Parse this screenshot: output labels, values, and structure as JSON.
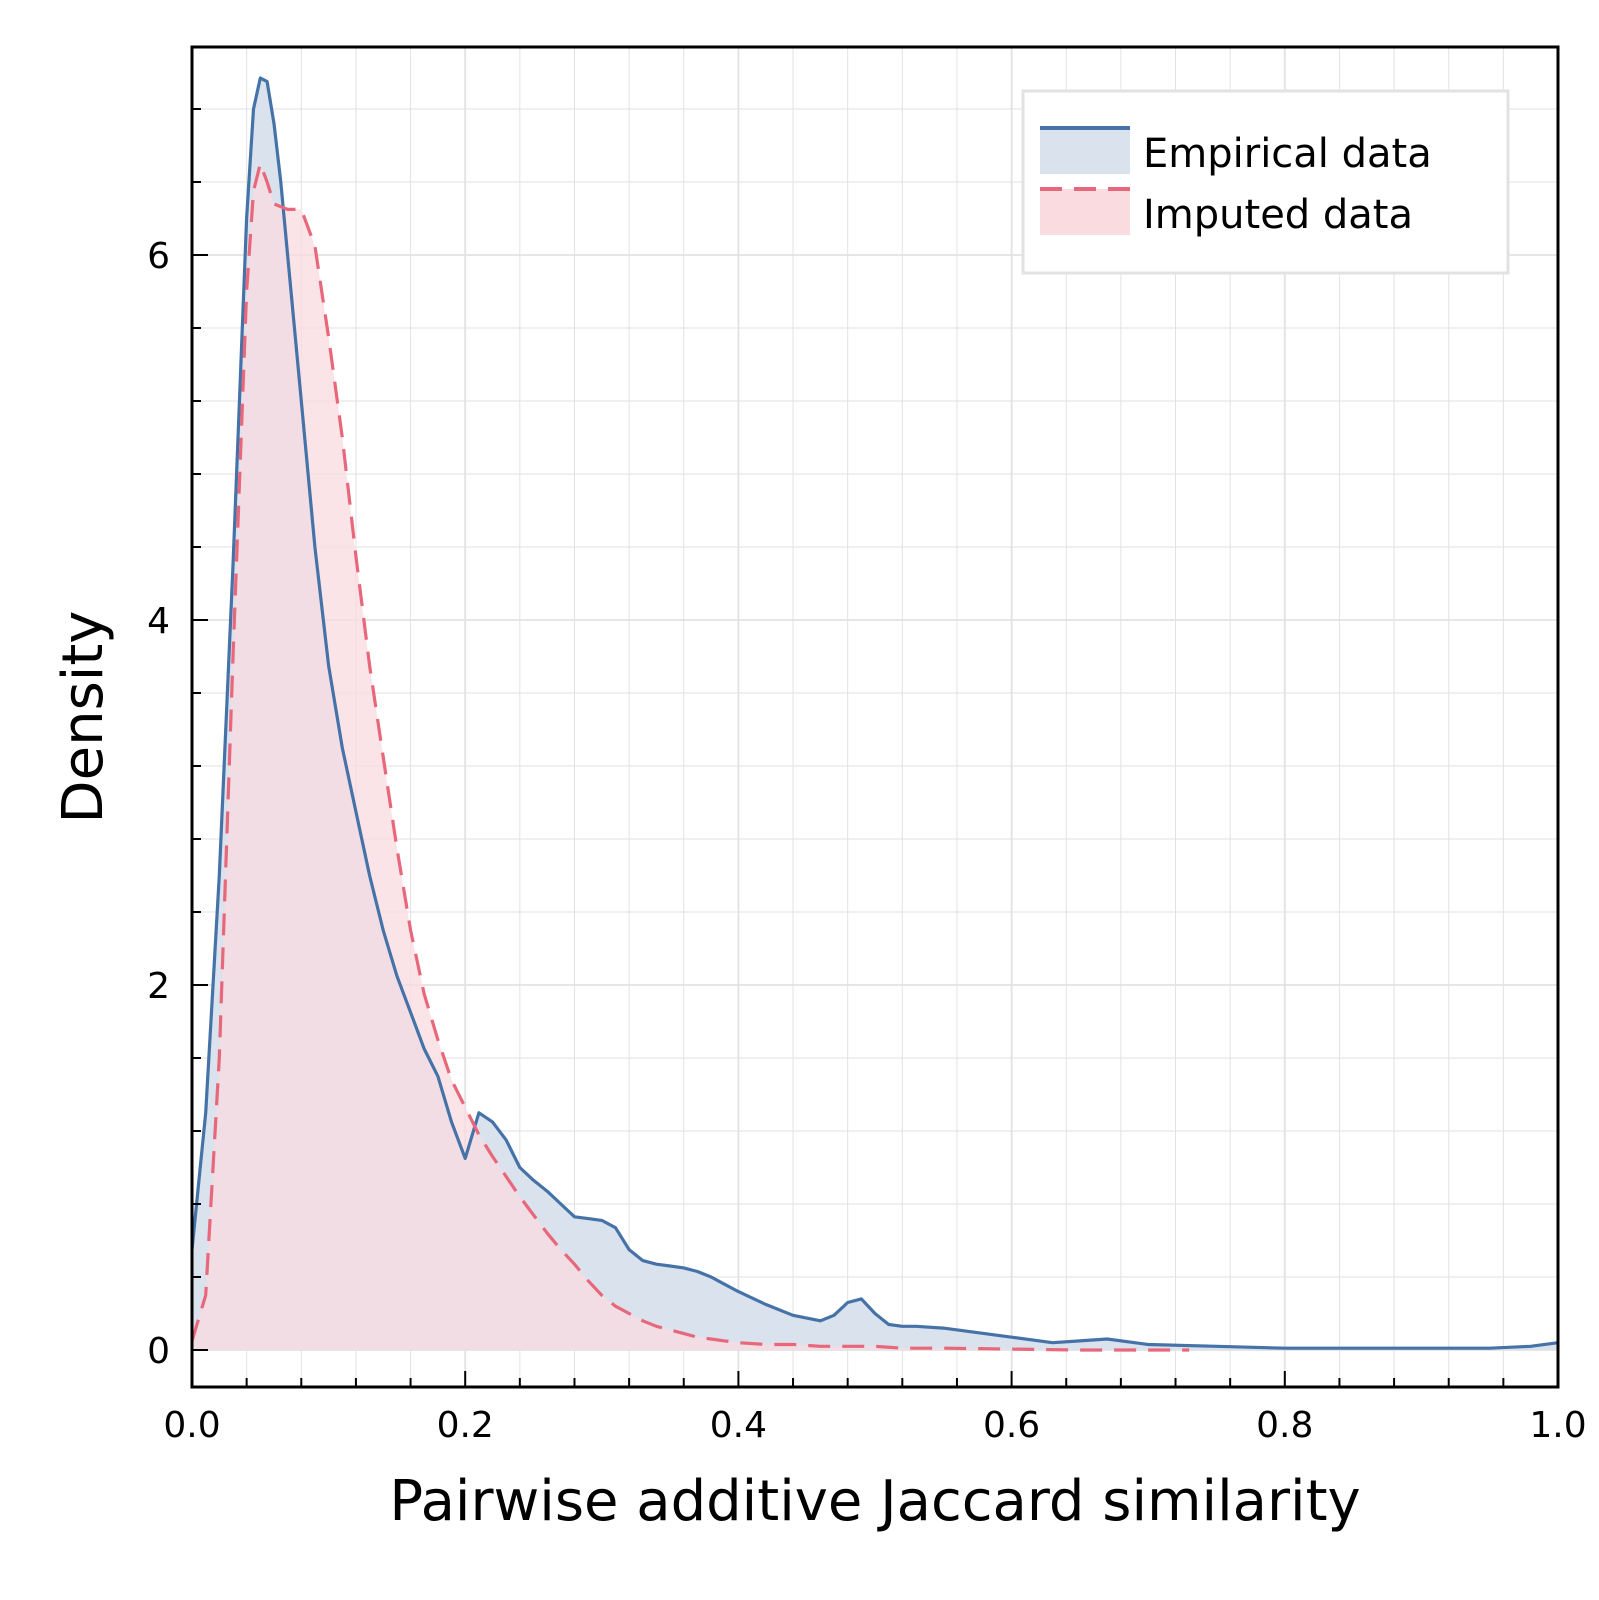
{
  "chart_data": {
    "type": "area",
    "xlabel": "Pairwise additive Jaccard similarity",
    "ylabel": "Density",
    "xlim": [
      0,
      1
    ],
    "ylim": [
      -0.2,
      7.15
    ],
    "xticks": [
      0,
      0.2,
      0.4,
      0.6,
      0.8,
      1.0
    ],
    "xtick_labels": [
      "0.0",
      "0.2",
      "0.4",
      "0.6",
      "0.8",
      "1.0"
    ],
    "yticks": [
      0,
      2,
      4,
      6
    ],
    "ytick_labels": [
      "0",
      "2",
      "4",
      "6"
    ],
    "grid": true,
    "legend_position": "top-right",
    "series": [
      {
        "name": "Empirical data",
        "color": "#4572a7",
        "fill": "#d9e2ed",
        "line_style": "solid",
        "x": [
          0,
          0.01,
          0.02,
          0.03,
          0.04,
          0.045,
          0.05,
          0.055,
          0.06,
          0.065,
          0.07,
          0.08,
          0.09,
          0.1,
          0.11,
          0.12,
          0.13,
          0.14,
          0.15,
          0.16,
          0.17,
          0.18,
          0.19,
          0.2,
          0.21,
          0.22,
          0.23,
          0.24,
          0.25,
          0.26,
          0.27,
          0.28,
          0.29,
          0.3,
          0.31,
          0.32,
          0.33,
          0.34,
          0.35,
          0.36,
          0.37,
          0.38,
          0.39,
          0.4,
          0.42,
          0.44,
          0.46,
          0.47,
          0.48,
          0.49,
          0.5,
          0.51,
          0.52,
          0.53,
          0.55,
          0.6,
          0.63,
          0.65,
          0.67,
          0.7,
          0.75,
          0.8,
          0.85,
          0.9,
          0.95,
          0.98,
          1.0
        ],
        "y": [
          0.55,
          1.3,
          2.6,
          4.3,
          6.2,
          6.8,
          6.97,
          6.95,
          6.72,
          6.4,
          6.0,
          5.2,
          4.4,
          3.75,
          3.3,
          2.95,
          2.6,
          2.3,
          2.05,
          1.85,
          1.65,
          1.5,
          1.25,
          1.05,
          1.3,
          1.25,
          1.15,
          1.0,
          0.93,
          0.87,
          0.8,
          0.73,
          0.72,
          0.71,
          0.67,
          0.55,
          0.49,
          0.47,
          0.46,
          0.45,
          0.43,
          0.4,
          0.36,
          0.32,
          0.25,
          0.19,
          0.16,
          0.19,
          0.26,
          0.28,
          0.2,
          0.14,
          0.13,
          0.13,
          0.12,
          0.07,
          0.04,
          0.05,
          0.06,
          0.03,
          0.02,
          0.01,
          0.01,
          0.01,
          0.01,
          0.02,
          0.04
        ]
      },
      {
        "name": "Imputed data",
        "color": "#e8677a",
        "fill": "#f9dbe0",
        "line_style": "dashed",
        "x": [
          0,
          0.01,
          0.02,
          0.03,
          0.04,
          0.045,
          0.05,
          0.055,
          0.06,
          0.07,
          0.08,
          0.09,
          0.1,
          0.11,
          0.12,
          0.13,
          0.14,
          0.15,
          0.16,
          0.17,
          0.18,
          0.19,
          0.2,
          0.21,
          0.22,
          0.23,
          0.24,
          0.25,
          0.26,
          0.27,
          0.28,
          0.29,
          0.3,
          0.31,
          0.32,
          0.33,
          0.34,
          0.35,
          0.36,
          0.37,
          0.38,
          0.39,
          0.4,
          0.42,
          0.44,
          0.46,
          0.48,
          0.5,
          0.52,
          0.55,
          0.6,
          0.65,
          0.7,
          0.73
        ],
        "y": [
          0.05,
          0.3,
          1.6,
          3.8,
          5.8,
          6.35,
          6.5,
          6.4,
          6.28,
          6.25,
          6.25,
          6.05,
          5.55,
          5.0,
          4.35,
          3.75,
          3.25,
          2.75,
          2.3,
          1.95,
          1.7,
          1.48,
          1.33,
          1.18,
          1.06,
          0.95,
          0.84,
          0.74,
          0.64,
          0.55,
          0.47,
          0.38,
          0.3,
          0.24,
          0.2,
          0.16,
          0.13,
          0.11,
          0.09,
          0.07,
          0.06,
          0.05,
          0.04,
          0.03,
          0.03,
          0.02,
          0.02,
          0.02,
          0.01,
          0.01,
          0.005,
          0.0,
          0.0,
          0.0
        ]
      }
    ]
  }
}
